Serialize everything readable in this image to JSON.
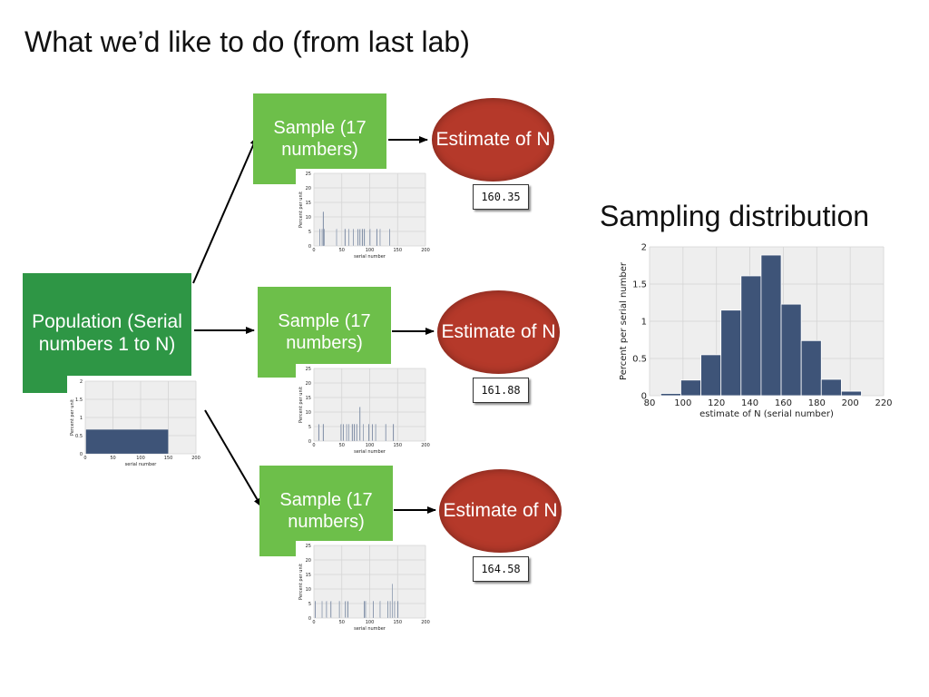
{
  "slide": {
    "title": "What we’d like to do (from last lab)",
    "sampling_title": "Sampling distribution"
  },
  "population": {
    "label": "Population (Serial numbers 1 to N)"
  },
  "branches": [
    {
      "sample_label": "Sample (17 numbers)",
      "estimate_label": "Estimate of N",
      "estimate_value": "160.35"
    },
    {
      "sample_label": "Sample (17 numbers)",
      "estimate_label": "Estimate of N",
      "estimate_value": "161.88"
    },
    {
      "sample_label": "Sample (17 numbers)",
      "estimate_label": "Estimate of N",
      "estimate_value": "164.58"
    }
  ],
  "colors": {
    "population_box": "#2e9645",
    "sample_box": "#6dbf4a",
    "estimate_ellipse": "#b5392a",
    "bars": "#3e5478",
    "plot_bg": "#eeeeee"
  },
  "chart_data": [
    {
      "id": "population",
      "type": "bar",
      "xlabel": "serial number",
      "ylabel": "Percent per unit",
      "xlim": [
        0,
        200
      ],
      "ylim": [
        0,
        2
      ],
      "xticks": [
        0,
        50,
        100,
        150,
        200
      ],
      "yticks": [
        0,
        0.5,
        1,
        1.5,
        2
      ],
      "bins": [
        [
          1,
          150,
          0.67
        ]
      ]
    },
    {
      "id": "sample-1",
      "type": "bar",
      "xlabel": "serial number",
      "ylabel": "Percent per unit",
      "xlim": [
        0,
        200
      ],
      "ylim": [
        0,
        25
      ],
      "xticks": [
        0,
        50,
        100,
        150,
        200
      ],
      "yticks": [
        0,
        5,
        10,
        15,
        20,
        25
      ],
      "bins": [
        [
          10,
          11,
          5.9
        ],
        [
          14,
          15,
          5.9
        ],
        [
          16,
          17,
          11.8
        ],
        [
          18,
          19,
          5.9
        ],
        [
          40,
          41,
          5.9
        ],
        [
          55,
          56,
          5.9
        ],
        [
          62,
          63,
          5.9
        ],
        [
          70,
          71,
          5.9
        ],
        [
          78,
          79,
          5.9
        ],
        [
          82,
          83,
          5.9
        ],
        [
          86,
          87,
          5.9
        ],
        [
          90,
          91,
          5.9
        ],
        [
          100,
          101,
          5.9
        ],
        [
          112,
          113,
          5.9
        ],
        [
          118,
          119,
          5.9
        ],
        [
          135,
          136,
          5.9
        ]
      ]
    },
    {
      "id": "sample-2",
      "type": "bar",
      "xlabel": "serial number",
      "ylabel": "Percent per unit",
      "xlim": [
        0,
        200
      ],
      "ylim": [
        0,
        25
      ],
      "xticks": [
        0,
        50,
        100,
        150,
        200
      ],
      "yticks": [
        0,
        5,
        10,
        15,
        20,
        25
      ],
      "bins": [
        [
          8,
          9,
          5.9
        ],
        [
          16,
          17,
          5.9
        ],
        [
          48,
          49,
          5.9
        ],
        [
          52,
          53,
          5.9
        ],
        [
          58,
          59,
          5.9
        ],
        [
          62,
          63,
          5.9
        ],
        [
          68,
          69,
          5.9
        ],
        [
          72,
          73,
          5.9
        ],
        [
          76,
          77,
          5.9
        ],
        [
          82,
          83,
          11.8
        ],
        [
          88,
          89,
          5.9
        ],
        [
          98,
          99,
          5.9
        ],
        [
          104,
          105,
          5.9
        ],
        [
          110,
          111,
          5.9
        ],
        [
          128,
          129,
          5.9
        ],
        [
          142,
          143,
          5.9
        ]
      ]
    },
    {
      "id": "sample-3",
      "type": "bar",
      "xlabel": "serial number",
      "ylabel": "Percent per unit",
      "xlim": [
        0,
        200
      ],
      "ylim": [
        0,
        25
      ],
      "xticks": [
        0,
        50,
        100,
        150,
        200
      ],
      "yticks": [
        0,
        5,
        10,
        15,
        20,
        25
      ],
      "bins": [
        [
          2,
          3,
          5.9
        ],
        [
          14,
          15,
          5.9
        ],
        [
          22,
          23,
          5.9
        ],
        [
          30,
          31,
          5.9
        ],
        [
          45,
          46,
          5.9
        ],
        [
          56,
          57,
          5.9
        ],
        [
          60,
          61,
          5.9
        ],
        [
          90,
          91,
          5.9
        ],
        [
          92,
          93,
          5.9
        ],
        [
          106,
          107,
          5.9
        ],
        [
          118,
          119,
          5.9
        ],
        [
          132,
          133,
          5.9
        ],
        [
          136,
          137,
          5.9
        ],
        [
          140,
          141,
          11.8
        ],
        [
          144,
          145,
          5.9
        ],
        [
          150,
          151,
          5.9
        ]
      ]
    },
    {
      "id": "sampling-distribution",
      "type": "bar",
      "xlabel": "estimate of N (serial number)",
      "ylabel": "Percent per serial number",
      "xlim": [
        80,
        220
      ],
      "ylim": [
        0,
        2
      ],
      "xticks": [
        80,
        100,
        120,
        140,
        160,
        180,
        200,
        220
      ],
      "yticks": [
        0,
        0.5,
        1,
        1.5,
        2
      ],
      "bins": [
        [
          86.7,
          98.7,
          0.03
        ],
        [
          98.7,
          110.7,
          0.21
        ],
        [
          110.7,
          122.7,
          0.55
        ],
        [
          122.7,
          134.7,
          1.15
        ],
        [
          134.7,
          146.7,
          1.61
        ],
        [
          146.7,
          158.7,
          1.89
        ],
        [
          158.7,
          170.7,
          1.23
        ],
        [
          170.7,
          182.7,
          0.74
        ],
        [
          182.7,
          194.7,
          0.22
        ],
        [
          194.7,
          206.7,
          0.06
        ]
      ]
    }
  ]
}
